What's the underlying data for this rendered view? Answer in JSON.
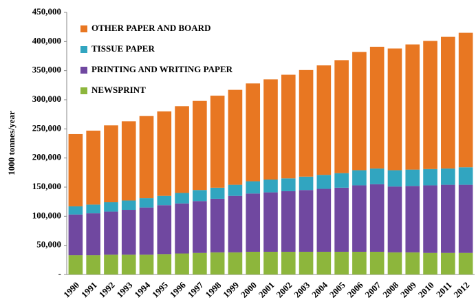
{
  "chart_data": {
    "type": "stacked_bar",
    "y_axis_label": "1000 tonnes/year",
    "categories": [
      "1990",
      "1991",
      "1992",
      "1993",
      "1994",
      "1995",
      "1996",
      "1997",
      "1998",
      "1999",
      "2000",
      "2001",
      "2002",
      "2003",
      "2004",
      "2005",
      "2006",
      "2007",
      "2008",
      "2009",
      "2010",
      "2011",
      "2012"
    ],
    "series": [
      {
        "name": "NEWSPRINT",
        "color": "#8db63c",
        "values": [
          33000,
          33000,
          34000,
          34000,
          34000,
          35000,
          36000,
          37000,
          38000,
          38000,
          39000,
          39000,
          39000,
          39000,
          39000,
          39000,
          39000,
          39000,
          38000,
          38000,
          37000,
          37000,
          37000
        ]
      },
      {
        "name": "PRINTING AND WRITING PAPER",
        "color": "#7048a0",
        "values": [
          70000,
          72000,
          74000,
          77000,
          81000,
          84000,
          86000,
          89000,
          92000,
          97000,
          100000,
          102000,
          104000,
          106000,
          108000,
          110000,
          114000,
          116000,
          113000,
          114000,
          116000,
          117000,
          117000
        ]
      },
      {
        "name": "TISSUE PAPER",
        "color": "#31a5c0",
        "values": [
          14000,
          15000,
          16000,
          16000,
          16000,
          16000,
          18000,
          19000,
          19000,
          19000,
          21000,
          22000,
          22000,
          23000,
          24000,
          25000,
          26000,
          27000,
          28000,
          28000,
          28000,
          28000,
          30000
        ]
      },
      {
        "name": "OTHER PAPER AND BOARD",
        "color": "#e87722",
        "values": [
          124000,
          127000,
          132000,
          136000,
          141000,
          145000,
          149000,
          153000,
          158000,
          163000,
          168000,
          172000,
          178000,
          183000,
          188000,
          194000,
          203000,
          209000,
          209000,
          215000,
          220000,
          226000,
          231000
        ]
      }
    ],
    "ylim": [
      0,
      450000
    ],
    "yticks": [
      {
        "value": 0,
        "label": "-"
      },
      {
        "value": 50000,
        "label": "50,000"
      },
      {
        "value": 100000,
        "label": "100,000"
      },
      {
        "value": 150000,
        "label": "150,000"
      },
      {
        "value": 200000,
        "label": "200,000"
      },
      {
        "value": 250000,
        "label": "250,000"
      },
      {
        "value": 300000,
        "label": "300,000"
      },
      {
        "value": 350000,
        "label": "350,000"
      },
      {
        "value": 400000,
        "label": "400,000"
      },
      {
        "value": 450000,
        "label": "450,000"
      }
    ],
    "legend": "top-left"
  }
}
